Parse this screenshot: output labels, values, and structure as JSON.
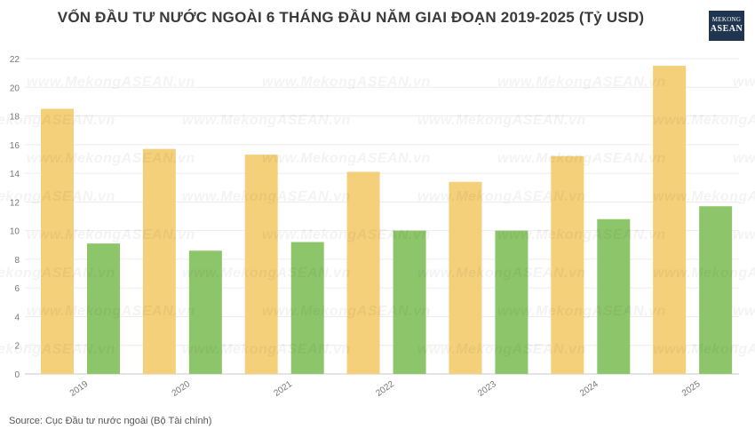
{
  "title": "VỐN ĐẦU TƯ NƯỚC NGOÀI 6 THÁNG ĐẦU NĂM GIAI ĐOẠN 2019-2025 (Tỷ USD)",
  "logo": {
    "line1": "MEKONG",
    "line2": "ASEAN"
  },
  "watermark_text": "www.MekongASEAN.vn",
  "source": "Source: Cục Đầu tư nước ngoài (Bộ Tài chính)",
  "chart_data": {
    "type": "bar",
    "categories": [
      "2019",
      "2020",
      "2021",
      "2022",
      "2023",
      "2024",
      "2025"
    ],
    "series": [
      {
        "values": [
          18.5,
          15.7,
          15.3,
          14.1,
          13.4,
          15.2,
          21.5
        ],
        "color": "#f5d07a"
      },
      {
        "values": [
          9.1,
          8.6,
          9.2,
          10.0,
          10.0,
          10.8,
          11.7
        ],
        "color": "#8dc66a"
      }
    ],
    "ylim": [
      0,
      22
    ],
    "yticks": [
      0,
      2,
      4,
      6,
      8,
      10,
      12,
      14,
      16,
      18,
      20,
      22
    ],
    "grid": true,
    "legend": "none"
  }
}
